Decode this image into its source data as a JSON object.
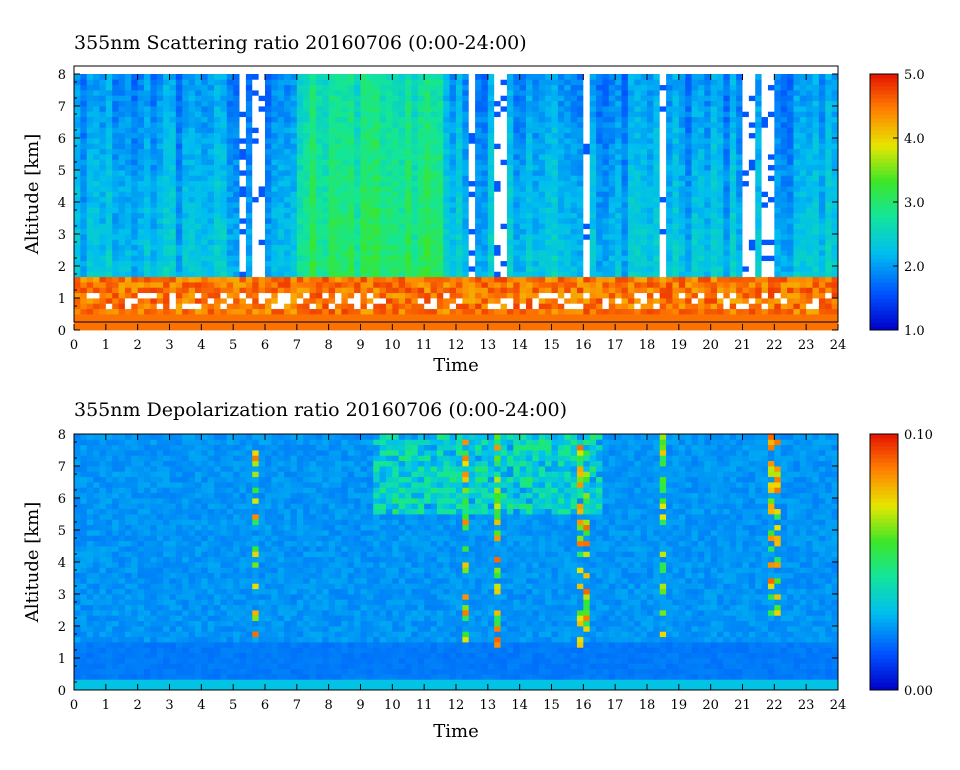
{
  "chart_data": [
    {
      "type": "heatmap",
      "title": "355nm Scattering ratio  20160706 (0:00-24:00)",
      "xlabel": "Time",
      "ylabel": "Altitude [km]",
      "xlim": [
        0,
        24
      ],
      "ylim": [
        0,
        8
      ],
      "x_ticks": [
        "0",
        "1",
        "2",
        "3",
        "4",
        "5",
        "6",
        "7",
        "8",
        "9",
        "10",
        "11",
        "12",
        "13",
        "14",
        "15",
        "16",
        "17",
        "18",
        "19",
        "20",
        "21",
        "22",
        "23",
        "24"
      ],
      "y_ticks": [
        "0",
        "1",
        "2",
        "3",
        "4",
        "5",
        "6",
        "7",
        "8"
      ],
      "colorbar": {
        "range": [
          1.0,
          5.0
        ],
        "ticks": [
          "1.0",
          "2.0",
          "3.0",
          "4.0",
          "5.0"
        ]
      },
      "description_features": {
        "boundary_layer_top_km": 1.7,
        "saturated_cloud_gaps_hours": [
          [
            5.2,
            5.4
          ],
          [
            5.6,
            5.9
          ],
          [
            12.3,
            12.6
          ],
          [
            13.3,
            13.6
          ],
          [
            15.9,
            16.1
          ],
          [
            18.4,
            18.6
          ],
          [
            21.1,
            21.4
          ],
          [
            21.7,
            22.0
          ]
        ],
        "high_ratio_period_hours": [
          7.0,
          11.5
        ]
      }
    },
    {
      "type": "heatmap",
      "title": "355nm Depolarization ratio  20160706 (0:00-24:00)",
      "xlabel": "Time",
      "ylabel": "Altitude [km]",
      "xlim": [
        0,
        24
      ],
      "ylim": [
        0,
        8
      ],
      "x_ticks": [
        "0",
        "1",
        "2",
        "3",
        "4",
        "5",
        "6",
        "7",
        "8",
        "9",
        "10",
        "11",
        "12",
        "13",
        "14",
        "15",
        "16",
        "17",
        "18",
        "19",
        "20",
        "21",
        "22",
        "23",
        "24"
      ],
      "y_ticks": [
        "0",
        "1",
        "2",
        "3",
        "4",
        "5",
        "6",
        "7",
        "8"
      ],
      "colorbar": {
        "range": [
          0.0,
          0.1
        ],
        "ticks": [
          "0.00",
          "0.10"
        ]
      },
      "description_features": {
        "speckled_columns_hours": [
          5.7,
          12.3,
          13.3,
          16.0,
          18.5,
          22.0
        ],
        "noisy_upper_period_hours": [
          9.5,
          16.5
        ]
      }
    }
  ]
}
